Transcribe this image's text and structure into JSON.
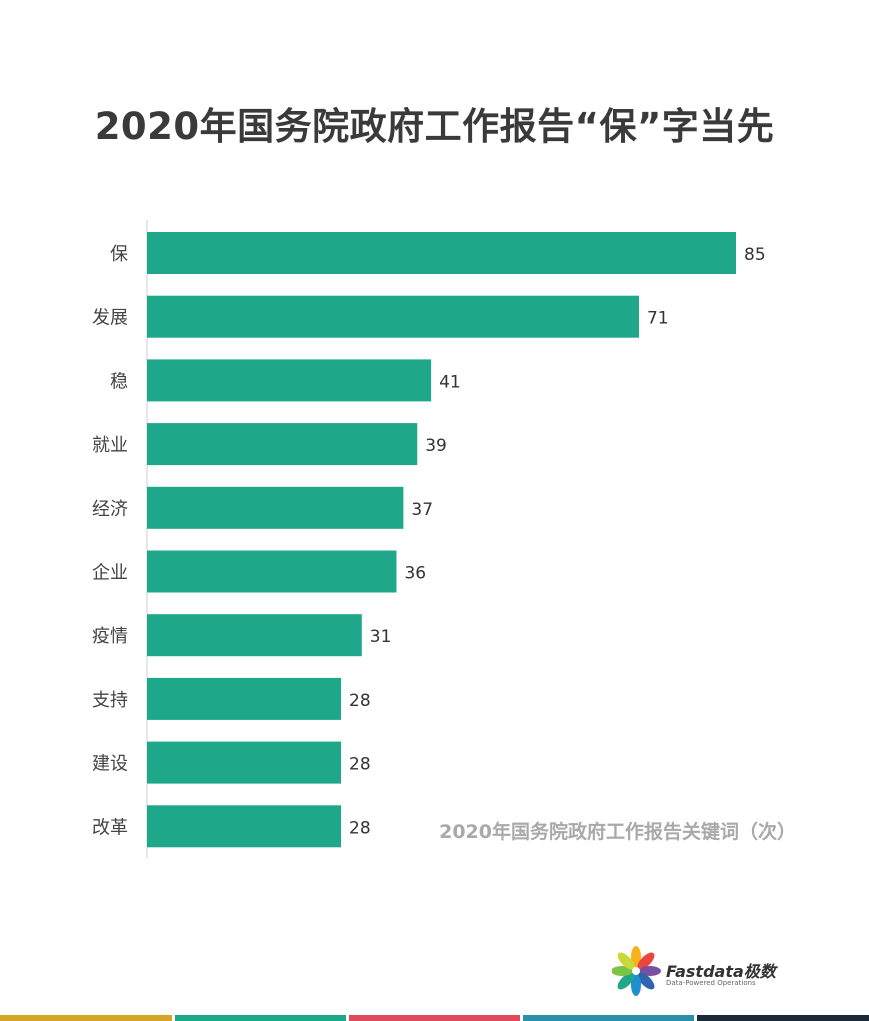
{
  "chart_data": {
    "type": "bar",
    "orientation": "horizontal",
    "title": "2020年国务院政府工作报告“保”字当先",
    "annotation": "2020年国务院政府工作报告关键词（次）",
    "categories": [
      "保",
      "发展",
      "稳",
      "就业",
      "经济",
      "企业",
      "疫情",
      "支持",
      "建设",
      "改革"
    ],
    "values": [
      85,
      71,
      41,
      39,
      37,
      36,
      31,
      28,
      28,
      28
    ],
    "xlim": [
      0,
      85
    ],
    "grid": false,
    "bar_color": "#1fa78a"
  },
  "brand": {
    "name": "Fastdata极数",
    "tagline": "Data-Powered Operations",
    "stripe_colors": [
      "#d4a626",
      "#1fa78a",
      "#e04a5a",
      "#2a8fa8",
      "#1a2a3a"
    ]
  }
}
